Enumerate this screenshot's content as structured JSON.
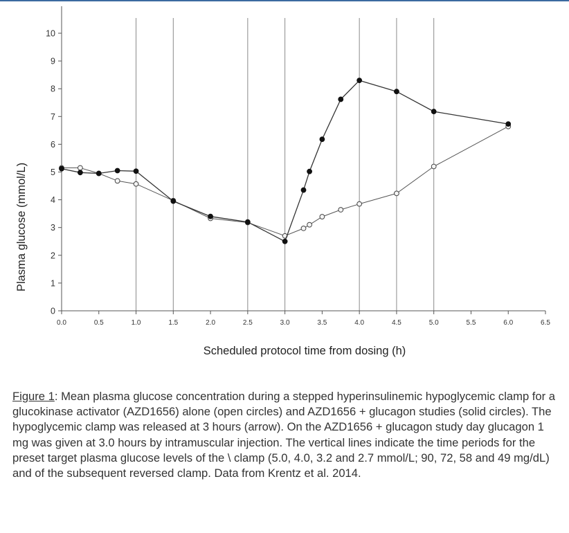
{
  "chart_data": {
    "type": "line",
    "xlabel": "Scheduled protocol time from dosing (h)",
    "ylabel": "Plasma glucose (mmol/L)",
    "xlim": [
      0.0,
      6.5
    ],
    "ylim": [
      0,
      10
    ],
    "x_ticks": [
      "0.0",
      "0.5",
      "1.0",
      "1.5",
      "2.0",
      "2.5",
      "3.0",
      "3.5",
      "4.0",
      "4.5",
      "5.0",
      "5.5",
      "6.0",
      "6.5"
    ],
    "y_ticks": [
      "0",
      "1",
      "2",
      "3",
      "4",
      "5",
      "6",
      "7",
      "8",
      "9",
      "10"
    ],
    "vertical_lines_x": [
      1.0,
      1.5,
      2.5,
      3.0,
      4.0,
      4.5,
      5.0
    ],
    "grid": false,
    "series": [
      {
        "marker": "open circle",
        "x": [
          0.0,
          0.25,
          0.5,
          0.75,
          1.0,
          1.5,
          2.0,
          2.5,
          3.0,
          3.25,
          3.33,
          3.5,
          3.75,
          4.0,
          4.5,
          5.0,
          6.0
        ],
        "values": [
          5.15,
          5.15,
          4.95,
          4.68,
          4.57,
          3.97,
          3.33,
          3.18,
          2.7,
          2.97,
          3.1,
          3.39,
          3.64,
          3.85,
          4.23,
          5.2,
          6.64
        ]
      },
      {
        "marker": "solid circle",
        "x": [
          0.0,
          0.25,
          0.5,
          0.75,
          1.0,
          1.5,
          2.0,
          2.5,
          3.0,
          3.25,
          3.33,
          3.5,
          3.75,
          4.0,
          4.5,
          5.0,
          6.0
        ],
        "values": [
          5.12,
          4.98,
          4.95,
          5.05,
          5.03,
          3.95,
          3.4,
          3.2,
          2.5,
          4.35,
          5.02,
          6.18,
          7.62,
          8.3,
          7.9,
          7.18,
          6.73
        ]
      }
    ]
  },
  "caption": {
    "label": "Figure 1",
    "text": ":  Mean plasma glucose concentration during a stepped hyperinsulinemic hypoglycemic clamp for a glucokinase activator (AZD1656) alone (open circles) and AZD1656 + glucagon studies (solid circles). The hypoglycemic clamp was released at 3 hours (arrow).  On the AZD1656 + glucagon study day glucagon 1 mg was given at 3.0 hours by intramuscular injection. The vertical lines indicate the time periods for the preset target plasma glucose levels of the \\ clamp (5.0, 4.0, 3.2 and 2.7 mmol/L; 90, 72, 58 and 49 mg/dL) and of the subsequent reversed clamp. Data from Krentz et al. 2014."
  }
}
